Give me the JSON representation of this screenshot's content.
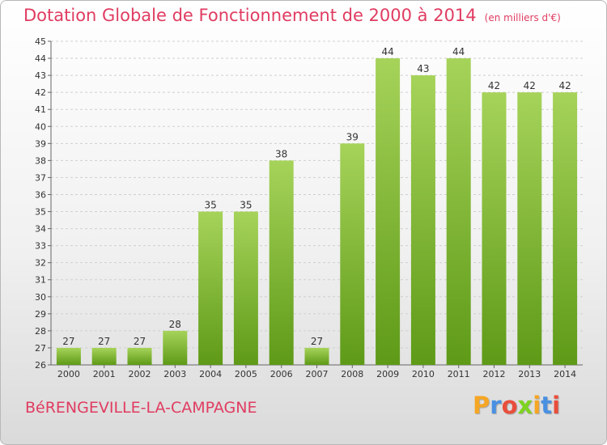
{
  "title": "Dotation Globale de Fonctionnement de 2000 à 2014",
  "subtitle": "(en milliers d'€)",
  "commune": "BéRENGEVILLE-LA-CAMPAGNE",
  "logo": {
    "letters": [
      "P",
      "r",
      "o",
      "x",
      "i",
      "t",
      "i"
    ],
    "colors": [
      "#f5a623",
      "#4a90e2",
      "#e94e3c",
      "#7ed321",
      "#f5a623",
      "#4a90e2",
      "#e94e3c"
    ]
  },
  "colors": {
    "accent": "#e03c61",
    "bar_top": "#a6d35a",
    "bar_bottom": "#5e9a17",
    "grid": "#cfcfcf"
  },
  "chart_data": {
    "type": "bar",
    "categories": [
      "2000",
      "2001",
      "2002",
      "2003",
      "2004",
      "2005",
      "2006",
      "2007",
      "2008",
      "2009",
      "2010",
      "2011",
      "2012",
      "2013",
      "2014"
    ],
    "values": [
      27,
      27,
      27,
      28,
      35,
      35,
      38,
      27,
      39,
      44,
      43,
      44,
      42,
      42,
      42
    ],
    "yticks": [
      26,
      27,
      28,
      29,
      30,
      31,
      32,
      33,
      34,
      35,
      36,
      37,
      38,
      39,
      40,
      41,
      42,
      43,
      44,
      45
    ],
    "ylim": [
      26,
      45
    ],
    "title": "Dotation Globale de Fonctionnement de 2000 à 2014",
    "xlabel": "",
    "ylabel": "",
    "grid": true,
    "data_labels": true
  }
}
